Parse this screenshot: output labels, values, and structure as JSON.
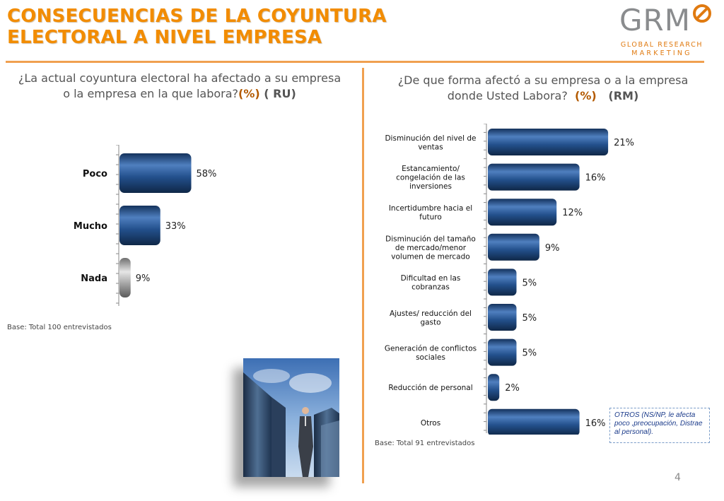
{
  "header": {
    "title_line1": "CONSECUENCIAS DE LA COYUNTURA",
    "title_line2": "ELECTORAL A NIVEL EMPRESA"
  },
  "logo": {
    "letters": "GRM",
    "sub1": "GLOBAL RESEARCH",
    "sub2": "MARKETING"
  },
  "left": {
    "question_line1": "¿La actual coyuntura electoral ha afectado a su empresa",
    "question_line2_a": "o la empresa en la que labora?",
    "question_pct": "(%)",
    "question_ru": " ( RU)",
    "base": "Base: Total  100  entrevistados"
  },
  "right": {
    "question_line1": "¿De que forma afectó a su empresa o a la empresa",
    "question_line2_a": "donde Usted Labora?  ",
    "question_pct": "(%)",
    "question_rm": "   (RM)",
    "base": "Base: Total  91  entrevistados",
    "others_note": "OTROS (NS/NP, le afecta poco ,preocupación, Distrae al personal)."
  },
  "page_number": "4",
  "colors": {
    "accent": "#f28c00",
    "bar_blue": "#1f4f8f",
    "bar_gray": "#9a9a9a"
  },
  "chart_data": [
    {
      "type": "bar",
      "orientation": "horizontal",
      "categories": [
        "Poco",
        "Mucho",
        "Nada"
      ],
      "values": [
        58,
        33,
        9
      ],
      "value_labels": [
        "58%",
        "33%",
        "9%"
      ],
      "bar_colors": [
        "#1f4f8f",
        "#1f4f8f",
        "#9a9a9a"
      ],
      "xlim": [
        0,
        100
      ]
    },
    {
      "type": "bar",
      "orientation": "horizontal",
      "categories": [
        [
          "Disminución  del nivel de",
          "ventas"
        ],
        [
          "Estancamiento/",
          "congelación de las",
          "inversiones"
        ],
        [
          "Incertidumbre hacia el",
          "futuro"
        ],
        [
          "Disminución del tamaño",
          "de mercado/menor",
          "volumen de mercado"
        ],
        [
          "Dificultad en las",
          "cobranzas"
        ],
        [
          "Ajustes/ reducción del",
          "gasto"
        ],
        [
          "Generación de conflictos",
          "sociales"
        ],
        [
          "Reducción de personal"
        ],
        [
          "Otros"
        ]
      ],
      "values": [
        21,
        16,
        12,
        9,
        5,
        5,
        5,
        2,
        16
      ],
      "value_labels": [
        "21%",
        "16%",
        "12%",
        "9%",
        "5%",
        "5%",
        "5%",
        "2%",
        "16%"
      ],
      "xlim": [
        0,
        100
      ]
    }
  ]
}
